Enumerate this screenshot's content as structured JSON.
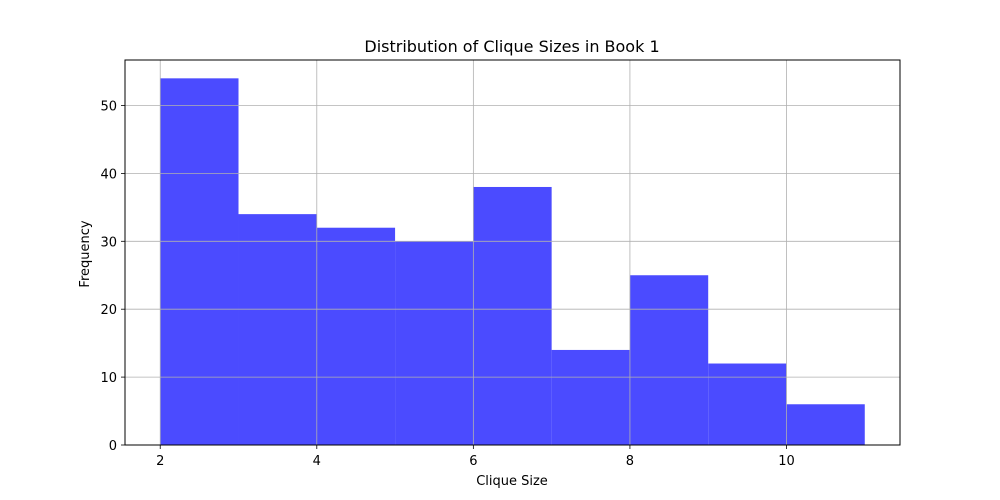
{
  "chart_data": {
    "type": "bar",
    "title": "Distribution of Clique Sizes in Book 1",
    "xlabel": "Clique Size",
    "ylabel": "Frequency",
    "bin_edges": [
      2,
      3,
      4,
      5,
      6,
      7,
      8,
      9,
      10,
      11
    ],
    "values": [
      54,
      34,
      32,
      30,
      38,
      14,
      25,
      12,
      6
    ],
    "xlim": [
      1.55,
      11.45
    ],
    "ylim": [
      0,
      56.7
    ],
    "xticks": [
      2,
      4,
      6,
      8,
      10
    ],
    "yticks": [
      0,
      10,
      20,
      30,
      40,
      50
    ],
    "grid": true,
    "bar_color": "#4b4bff"
  }
}
